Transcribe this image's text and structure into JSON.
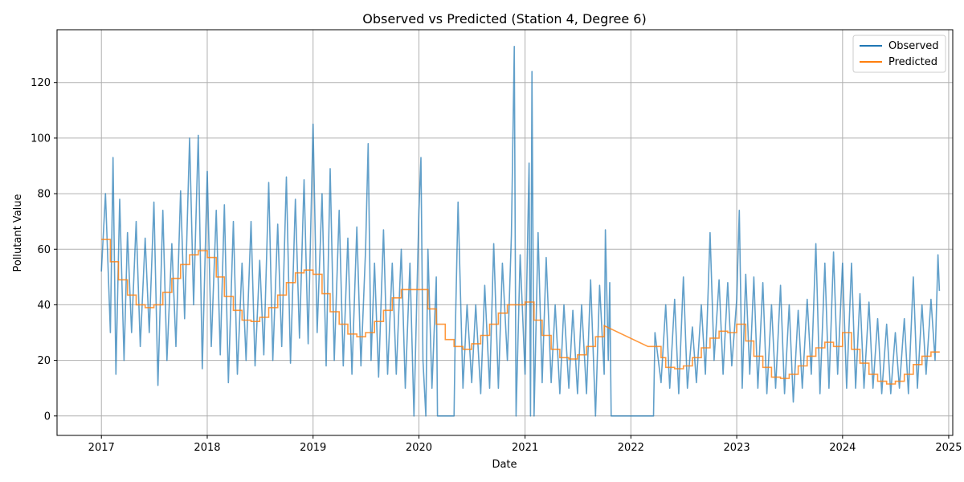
{
  "chart_data": {
    "type": "line",
    "title": "Observed vs Predicted (Station 4, Degree 6)",
    "xlabel": "Date",
    "ylabel": "Pollutant Value",
    "xlim": [
      "2016-08-01",
      "2025-01-15"
    ],
    "ylim": [
      -7,
      139
    ],
    "grid": true,
    "legend_position": "top-right",
    "x_ticks": [
      "2017",
      "2018",
      "2019",
      "2020",
      "2021",
      "2022",
      "2023",
      "2024",
      "2025"
    ],
    "y_ticks": [
      0,
      20,
      40,
      60,
      80,
      100,
      120
    ],
    "colors": {
      "observed": "#1f77b4",
      "predicted": "#ff7f0e"
    },
    "series": [
      {
        "name": "Observed",
        "description_points": [
          [
            "2017-01-01",
            52
          ],
          [
            "2017-01-15",
            80
          ],
          [
            "2017-02-01",
            30
          ],
          [
            "2017-02-10",
            93
          ],
          [
            "2017-02-20",
            15
          ],
          [
            "2017-03-05",
            78
          ],
          [
            "2017-03-20",
            20
          ],
          [
            "2017-04-01",
            66
          ],
          [
            "2017-04-15",
            30
          ],
          [
            "2017-05-01",
            70
          ],
          [
            "2017-05-15",
            25
          ],
          [
            "2017-06-01",
            64
          ],
          [
            "2017-06-15",
            30
          ],
          [
            "2017-07-01",
            77
          ],
          [
            "2017-07-15",
            11
          ],
          [
            "2017-08-01",
            74
          ],
          [
            "2017-08-15",
            20
          ],
          [
            "2017-09-01",
            62
          ],
          [
            "2017-09-15",
            25
          ],
          [
            "2017-10-01",
            81
          ],
          [
            "2017-10-15",
            35
          ],
          [
            "2017-11-01",
            100
          ],
          [
            "2017-11-15",
            40
          ],
          [
            "2017-12-01",
            101
          ],
          [
            "2017-12-15",
            17
          ],
          [
            "2018-01-01",
            88
          ],
          [
            "2018-01-15",
            25
          ],
          [
            "2018-02-01",
            74
          ],
          [
            "2018-02-15",
            22
          ],
          [
            "2018-03-01",
            76
          ],
          [
            "2018-03-15",
            12
          ],
          [
            "2018-04-01",
            70
          ],
          [
            "2018-04-15",
            15
          ],
          [
            "2018-05-01",
            55
          ],
          [
            "2018-05-15",
            20
          ],
          [
            "2018-06-01",
            70
          ],
          [
            "2018-06-15",
            18
          ],
          [
            "2018-07-01",
            56
          ],
          [
            "2018-07-15",
            22
          ],
          [
            "2018-08-01",
            84
          ],
          [
            "2018-08-15",
            20
          ],
          [
            "2018-09-01",
            69
          ],
          [
            "2018-09-15",
            25
          ],
          [
            "2018-10-01",
            86
          ],
          [
            "2018-10-15",
            19
          ],
          [
            "2018-11-01",
            78
          ],
          [
            "2018-11-15",
            28
          ],
          [
            "2018-12-01",
            85
          ],
          [
            "2018-12-15",
            26
          ],
          [
            "2019-01-01",
            105
          ],
          [
            "2019-01-15",
            30
          ],
          [
            "2019-02-01",
            80
          ],
          [
            "2019-02-15",
            18
          ],
          [
            "2019-03-01",
            89
          ],
          [
            "2019-03-15",
            20
          ],
          [
            "2019-04-01",
            74
          ],
          [
            "2019-04-15",
            18
          ],
          [
            "2019-05-01",
            64
          ],
          [
            "2019-05-15",
            15
          ],
          [
            "2019-06-01",
            68
          ],
          [
            "2019-06-15",
            18
          ],
          [
            "2019-07-01",
            60
          ],
          [
            "2019-07-10",
            98
          ],
          [
            "2019-07-20",
            20
          ],
          [
            "2019-08-01",
            55
          ],
          [
            "2019-08-15",
            14
          ],
          [
            "2019-09-01",
            67
          ],
          [
            "2019-09-15",
            15
          ],
          [
            "2019-10-01",
            55
          ],
          [
            "2019-10-15",
            15
          ],
          [
            "2019-11-01",
            60
          ],
          [
            "2019-11-15",
            10
          ],
          [
            "2019-12-01",
            55
          ],
          [
            "2019-12-15",
            0
          ],
          [
            "2020-01-01",
            74
          ],
          [
            "2020-01-08",
            93
          ],
          [
            "2020-01-15",
            20
          ],
          [
            "2020-01-25",
            0
          ],
          [
            "2020-02-01",
            60
          ],
          [
            "2020-02-15",
            10
          ],
          [
            "2020-03-01",
            50
          ],
          [
            "2020-03-05",
            0
          ],
          [
            "2020-05-01",
            0
          ],
          [
            "2020-05-05",
            28
          ],
          [
            "2020-05-15",
            77
          ],
          [
            "2020-06-01",
            10
          ],
          [
            "2020-06-15",
            40
          ],
          [
            "2020-07-01",
            12
          ],
          [
            "2020-07-15",
            40
          ],
          [
            "2020-08-01",
            8
          ],
          [
            "2020-08-15",
            47
          ],
          [
            "2020-09-01",
            10
          ],
          [
            "2020-09-15",
            62
          ],
          [
            "2020-10-01",
            10
          ],
          [
            "2020-10-15",
            55
          ],
          [
            "2020-11-01",
            20
          ],
          [
            "2020-11-15",
            65
          ],
          [
            "2020-11-25",
            133
          ],
          [
            "2020-12-01",
            0
          ],
          [
            "2020-12-15",
            58
          ],
          [
            "2021-01-01",
            15
          ],
          [
            "2021-01-15",
            91
          ],
          [
            "2021-01-20",
            0
          ],
          [
            "2021-01-25",
            124
          ],
          [
            "2021-02-01",
            0
          ],
          [
            "2021-02-15",
            66
          ],
          [
            "2021-03-01",
            12
          ],
          [
            "2021-03-15",
            57
          ],
          [
            "2021-04-01",
            12
          ],
          [
            "2021-04-15",
            40
          ],
          [
            "2021-05-01",
            8
          ],
          [
            "2021-05-15",
            40
          ],
          [
            "2021-06-01",
            10
          ],
          [
            "2021-06-15",
            38
          ],
          [
            "2021-07-01",
            8
          ],
          [
            "2021-07-15",
            40
          ],
          [
            "2021-08-01",
            8
          ],
          [
            "2021-08-15",
            49
          ],
          [
            "2021-09-01",
            0
          ],
          [
            "2021-09-15",
            47
          ],
          [
            "2021-10-01",
            15
          ],
          [
            "2021-10-05",
            67
          ],
          [
            "2021-10-15",
            20
          ],
          [
            "2021-10-20",
            48
          ],
          [
            "2021-10-25",
            0
          ],
          [
            "2022-03-20",
            0
          ],
          [
            "2022-03-25",
            30
          ],
          [
            "2022-04-15",
            12
          ],
          [
            "2022-05-01",
            40
          ],
          [
            "2022-05-15",
            10
          ],
          [
            "2022-06-01",
            42
          ],
          [
            "2022-06-15",
            8
          ],
          [
            "2022-07-01",
            50
          ],
          [
            "2022-07-15",
            10
          ],
          [
            "2022-08-01",
            32
          ],
          [
            "2022-08-15",
            12
          ],
          [
            "2022-09-01",
            40
          ],
          [
            "2022-09-15",
            15
          ],
          [
            "2022-10-01",
            66
          ],
          [
            "2022-10-15",
            20
          ],
          [
            "2022-11-01",
            49
          ],
          [
            "2022-11-15",
            15
          ],
          [
            "2022-12-01",
            48
          ],
          [
            "2022-12-15",
            18
          ],
          [
            "2023-01-01",
            42
          ],
          [
            "2023-01-10",
            74
          ],
          [
            "2023-01-20",
            10
          ],
          [
            "2023-02-01",
            51
          ],
          [
            "2023-02-15",
            15
          ],
          [
            "2023-03-01",
            50
          ],
          [
            "2023-03-15",
            10
          ],
          [
            "2023-04-01",
            48
          ],
          [
            "2023-04-15",
            8
          ],
          [
            "2023-05-01",
            40
          ],
          [
            "2023-05-15",
            10
          ],
          [
            "2023-06-01",
            47
          ],
          [
            "2023-06-15",
            8
          ],
          [
            "2023-07-01",
            40
          ],
          [
            "2023-07-15",
            5
          ],
          [
            "2023-08-01",
            38
          ],
          [
            "2023-08-15",
            10
          ],
          [
            "2023-09-01",
            42
          ],
          [
            "2023-09-15",
            15
          ],
          [
            "2023-10-01",
            62
          ],
          [
            "2023-10-15",
            8
          ],
          [
            "2023-11-01",
            55
          ],
          [
            "2023-11-15",
            10
          ],
          [
            "2023-12-01",
            59
          ],
          [
            "2023-12-15",
            15
          ],
          [
            "2024-01-01",
            55
          ],
          [
            "2024-01-15",
            10
          ],
          [
            "2024-02-01",
            55
          ],
          [
            "2024-02-15",
            10
          ],
          [
            "2024-03-01",
            44
          ],
          [
            "2024-03-15",
            10
          ],
          [
            "2024-04-01",
            41
          ],
          [
            "2024-04-15",
            10
          ],
          [
            "2024-05-01",
            35
          ],
          [
            "2024-05-15",
            8
          ],
          [
            "2024-06-01",
            33
          ],
          [
            "2024-06-15",
            8
          ],
          [
            "2024-07-01",
            30
          ],
          [
            "2024-07-15",
            10
          ],
          [
            "2024-08-01",
            35
          ],
          [
            "2024-08-15",
            8
          ],
          [
            "2024-09-01",
            50
          ],
          [
            "2024-09-15",
            10
          ],
          [
            "2024-10-01",
            40
          ],
          [
            "2024-10-15",
            15
          ],
          [
            "2024-11-01",
            42
          ],
          [
            "2024-11-15",
            20
          ],
          [
            "2024-11-25",
            58
          ],
          [
            "2024-11-30",
            45
          ]
        ]
      },
      {
        "name": "Predicted",
        "steps": [
          [
            "2017-01-01",
            63.5
          ],
          [
            "2017-02-01",
            55.5
          ],
          [
            "2017-03-01",
            49
          ],
          [
            "2017-04-01",
            43.5
          ],
          [
            "2017-05-01",
            40
          ],
          [
            "2017-06-01",
            39
          ],
          [
            "2017-07-01",
            40
          ],
          [
            "2017-08-01",
            44.5
          ],
          [
            "2017-09-01",
            49.5
          ],
          [
            "2017-10-01",
            54.5
          ],
          [
            "2017-11-01",
            58
          ],
          [
            "2017-12-01",
            59.5
          ],
          [
            "2018-01-01",
            57
          ],
          [
            "2018-02-01",
            50
          ],
          [
            "2018-03-01",
            43
          ],
          [
            "2018-04-01",
            38
          ],
          [
            "2018-05-01",
            34.5
          ],
          [
            "2018-06-01",
            34
          ],
          [
            "2018-07-01",
            35.5
          ],
          [
            "2018-08-01",
            39
          ],
          [
            "2018-09-01",
            43.5
          ],
          [
            "2018-10-01",
            48
          ],
          [
            "2018-11-01",
            51.5
          ],
          [
            "2018-12-01",
            52.5
          ],
          [
            "2019-01-01",
            51
          ],
          [
            "2019-02-01",
            44
          ],
          [
            "2019-03-01",
            37.5
          ],
          [
            "2019-04-01",
            33
          ],
          [
            "2019-05-01",
            29.5
          ],
          [
            "2019-06-01",
            28.5
          ],
          [
            "2019-07-01",
            30
          ],
          [
            "2019-08-01",
            34
          ],
          [
            "2019-09-01",
            38
          ],
          [
            "2019-10-01",
            42.5
          ],
          [
            "2019-11-01",
            45.5
          ],
          [
            "2019-12-01",
            45.5
          ],
          [
            "2020-01-01",
            45.5
          ],
          [
            "2020-02-01",
            38.5
          ],
          [
            "2020-03-01",
            33
          ],
          [
            "2020-04-01",
            27.5
          ],
          [
            "2020-05-01",
            25
          ],
          [
            "2020-06-01",
            24
          ],
          [
            "2020-07-01",
            26
          ],
          [
            "2020-08-01",
            29
          ],
          [
            "2020-09-01",
            33
          ],
          [
            "2020-10-01",
            37
          ],
          [
            "2020-11-01",
            40
          ],
          [
            "2020-12-01",
            40
          ],
          [
            "2021-01-01",
            41
          ],
          [
            "2021-02-01",
            34.5
          ],
          [
            "2021-03-01",
            29
          ],
          [
            "2021-04-01",
            24
          ],
          [
            "2021-05-01",
            21
          ],
          [
            "2021-06-01",
            20.5
          ],
          [
            "2021-07-01",
            22
          ],
          [
            "2021-08-01",
            25
          ],
          [
            "2021-09-01",
            28.5
          ],
          [
            "2021-10-01",
            32.5
          ],
          [
            "2022-03-01",
            25
          ],
          [
            "2022-04-01",
            25
          ],
          [
            "2022-04-15",
            21
          ],
          [
            "2022-05-01",
            17.5
          ],
          [
            "2022-06-01",
            17
          ],
          [
            "2022-07-01",
            18
          ],
          [
            "2022-08-01",
            21
          ],
          [
            "2022-09-01",
            24.5
          ],
          [
            "2022-10-01",
            28
          ],
          [
            "2022-11-01",
            30.5
          ],
          [
            "2022-12-01",
            30
          ],
          [
            "2023-01-01",
            33
          ],
          [
            "2023-02-01",
            27
          ],
          [
            "2023-03-01",
            21.5
          ],
          [
            "2023-04-01",
            17.5
          ],
          [
            "2023-05-01",
            14
          ],
          [
            "2023-06-01",
            13.5
          ],
          [
            "2023-07-01",
            15
          ],
          [
            "2023-08-01",
            18
          ],
          [
            "2023-09-01",
            21.5
          ],
          [
            "2023-10-01",
            24.5
          ],
          [
            "2023-11-01",
            26.5
          ],
          [
            "2023-12-01",
            25
          ],
          [
            "2024-01-01",
            30
          ],
          [
            "2024-02-01",
            24
          ],
          [
            "2024-03-01",
            19
          ],
          [
            "2024-04-01",
            15
          ],
          [
            "2024-05-01",
            12.5
          ],
          [
            "2024-06-01",
            11.5
          ],
          [
            "2024-07-01",
            12.5
          ],
          [
            "2024-08-01",
            15
          ],
          [
            "2024-09-01",
            18.5
          ],
          [
            "2024-10-01",
            21.5
          ],
          [
            "2024-11-01",
            23
          ],
          [
            "2024-12-01",
            23
          ]
        ]
      }
    ]
  }
}
